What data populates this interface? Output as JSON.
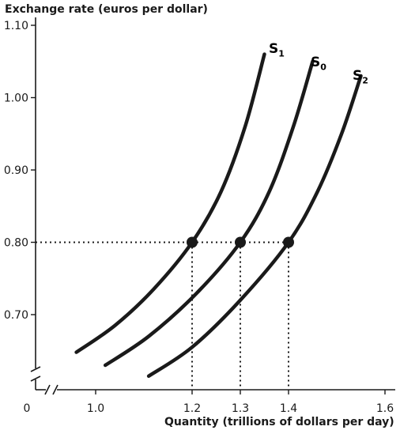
{
  "chart_data": {
    "type": "line",
    "ylabel": "Exchange rate (euros per dollar)",
    "xlabel": "Quantity (trillions of dollars per day)",
    "origin_label": "0",
    "x_ticks": [
      {
        "value": 1.0,
        "label": "1.0"
      },
      {
        "value": 1.2,
        "label": "1.2"
      },
      {
        "value": 1.3,
        "label": "1.3"
      },
      {
        "value": 1.4,
        "label": "1.4"
      },
      {
        "value": 1.6,
        "label": "1.6"
      }
    ],
    "y_ticks": [
      {
        "value": 0.7,
        "label": "0.70"
      },
      {
        "value": 0.8,
        "label": "0.80"
      },
      {
        "value": 0.9,
        "label": "0.90"
      },
      {
        "value": 1.0,
        "label": "1.00"
      },
      {
        "value": 1.1,
        "label": "1.10"
      }
    ],
    "xlim": [
      1.0,
      1.6
    ],
    "ylim": [
      0.7,
      1.1
    ],
    "series": [
      {
        "name": "S",
        "subscript": "1",
        "points": [
          [
            0.96,
            0.648
          ],
          [
            1.04,
            0.685
          ],
          [
            1.12,
            0.735
          ],
          [
            1.2,
            0.8
          ],
          [
            1.26,
            0.87
          ],
          [
            1.31,
            0.96
          ],
          [
            1.35,
            1.06
          ]
        ]
      },
      {
        "name": "S",
        "subscript": "0",
        "points": [
          [
            1.02,
            0.63
          ],
          [
            1.11,
            0.67
          ],
          [
            1.21,
            0.73
          ],
          [
            1.3,
            0.8
          ],
          [
            1.36,
            0.87
          ],
          [
            1.41,
            0.96
          ],
          [
            1.45,
            1.05
          ]
        ]
      },
      {
        "name": "S",
        "subscript": "2",
        "points": [
          [
            1.11,
            0.615
          ],
          [
            1.2,
            0.655
          ],
          [
            1.3,
            0.72
          ],
          [
            1.4,
            0.8
          ],
          [
            1.46,
            0.87
          ],
          [
            1.51,
            0.95
          ],
          [
            1.55,
            1.03
          ]
        ]
      }
    ],
    "equilibrium_points": [
      {
        "x": 1.2,
        "y": 0.8
      },
      {
        "x": 1.3,
        "y": 0.8
      },
      {
        "x": 1.4,
        "y": 0.8
      }
    ],
    "axis_break": true,
    "grid": false
  }
}
